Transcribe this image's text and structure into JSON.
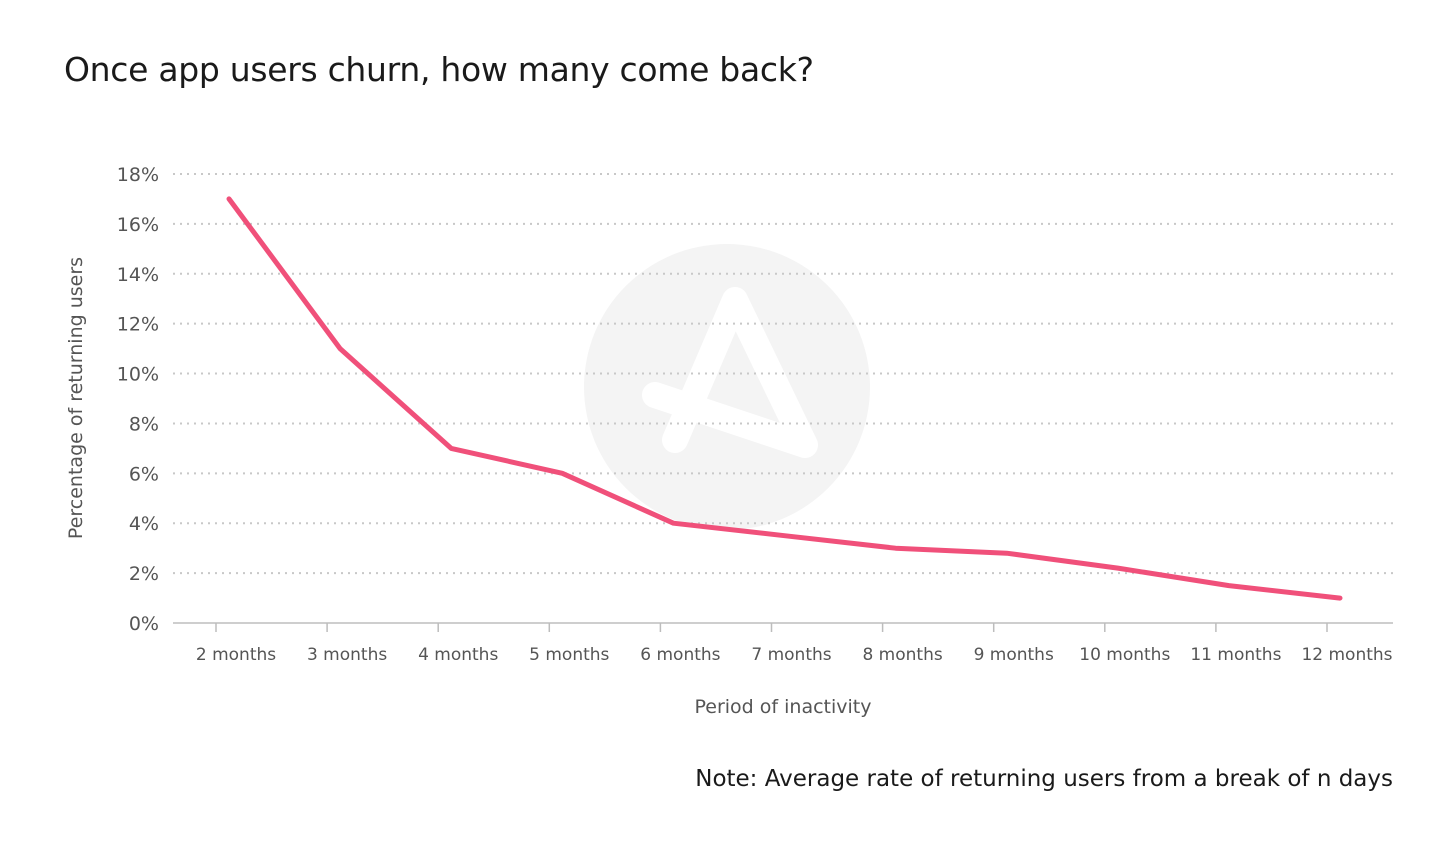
{
  "chart_data": {
    "type": "line",
    "title": "Once app users churn, how many come back?",
    "xlabel": "Period of inactivity",
    "ylabel": "Percentage of returning users",
    "categories": [
      "2 months",
      "3 months",
      "4 months",
      "5 months",
      "6 months",
      "7 months",
      "8 months",
      "9 months",
      "10 months",
      "11 months",
      "12 months"
    ],
    "values": [
      17,
      11,
      7,
      6,
      4,
      3.5,
      3,
      2.8,
      2.2,
      1.5,
      1
    ],
    "ylim": [
      0,
      18
    ],
    "yticks": [
      0,
      2,
      4,
      6,
      8,
      10,
      12,
      14,
      16,
      18
    ],
    "ytick_labels": [
      "0%",
      "2%",
      "4%",
      "6%",
      "8%",
      "10%",
      "12%",
      "14%",
      "16%",
      "18%"
    ],
    "grid": true,
    "line_color": "#f0507a",
    "note": "Note: Average rate of returning users from a break of n days"
  }
}
